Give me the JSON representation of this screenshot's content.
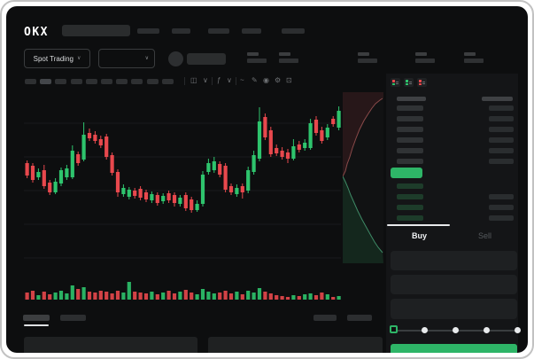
{
  "header": {
    "logo": "OKX",
    "nav_placeholder_count": 5,
    "search": {
      "placeholder": ""
    }
  },
  "subheader": {
    "market_type": {
      "label": "Spot Trading",
      "chevron": "∨"
    },
    "pair_select_chevron": "∨",
    "stat_placeholder_count": 5
  },
  "chart_toolbar": {
    "timeframe_pill_count": 10,
    "icons": [
      {
        "name": "candle-style-icon",
        "glyph": "◫"
      },
      {
        "name": "chevron-down-icon",
        "glyph": "∨"
      },
      {
        "name": "indicator-icon",
        "glyph": "ƒ"
      },
      {
        "name": "chevron-down-icon",
        "glyph": "∨"
      },
      {
        "name": "line-tool-icon",
        "glyph": "~"
      },
      {
        "name": "draw-tool-icon",
        "glyph": "✎"
      },
      {
        "name": "camera-icon",
        "glyph": "◉"
      },
      {
        "name": "settings-gear-icon",
        "glyph": "⚙"
      },
      {
        "name": "fullscreen-icon",
        "glyph": "⊡"
      }
    ]
  },
  "order_book": {
    "view_toggle_icons": [
      {
        "name": "book-both-icon"
      },
      {
        "name": "book-bids-icon"
      },
      {
        "name": "book-asks-icon"
      }
    ],
    "ask_row_count": 6,
    "bid_row_count": 4
  },
  "trade_panel": {
    "tabs": [
      {
        "label": "Buy",
        "active": true
      },
      {
        "label": "Sell",
        "active": false
      }
    ],
    "field_count": 3,
    "slider": {
      "steps": 5,
      "value_index": 0
    }
  },
  "bottom_bar": {
    "left_tab_count": 2,
    "right_pill_count": 2,
    "panel_count": 2
  },
  "colors": {
    "green": "#2ec46d",
    "red": "#e8484d",
    "accent_green": "#2eb567",
    "bid_bar": "#1d3c2a",
    "ask_bar": "#303335",
    "amount_bar": "#2a2d2f",
    "grid": "#191b1d",
    "depth_ask_line": "#8a4a4a",
    "depth_bid_line": "#3f8a66"
  },
  "chart_data": [
    {
      "type": "candlestick",
      "title": "",
      "xlabel": "",
      "ylabel": "",
      "ylim": [
        50,
        190
      ],
      "grid": true,
      "note": "prices in normalized units, no axis labels visible; candles as [open,high,low,close]",
      "candles": [
        [
          113,
          116,
          96,
          99
        ],
        [
          110,
          113,
          91,
          94
        ],
        [
          97,
          107,
          94,
          103
        ],
        [
          105,
          111,
          84,
          87
        ],
        [
          91,
          94,
          77,
          80
        ],
        [
          80,
          96,
          78,
          92
        ],
        [
          90,
          108,
          87,
          105
        ],
        [
          97,
          111,
          94,
          107
        ],
        [
          97,
          133,
          95,
          127
        ],
        [
          123,
          126,
          110,
          113
        ],
        [
          117,
          159,
          115,
          145
        ],
        [
          147,
          152,
          138,
          141
        ],
        [
          145,
          149,
          135,
          138
        ],
        [
          140,
          144,
          130,
          133
        ],
        [
          143,
          146,
          117,
          120
        ],
        [
          122,
          125,
          99,
          102
        ],
        [
          103,
          106,
          75,
          80
        ],
        [
          78,
          89,
          75,
          85
        ],
        [
          75,
          86,
          72,
          83
        ],
        [
          82,
          85,
          73,
          76
        ],
        [
          84,
          87,
          71,
          74
        ],
        [
          80,
          83,
          69,
          72
        ],
        [
          71,
          81,
          68,
          78
        ],
        [
          77,
          80,
          65,
          68
        ],
        [
          70,
          79,
          67,
          76
        ],
        [
          79,
          82,
          68,
          71
        ],
        [
          77,
          80,
          64,
          68
        ],
        [
          67,
          77,
          64,
          74
        ],
        [
          77,
          80,
          59,
          62
        ],
        [
          72,
          75,
          57,
          60
        ],
        [
          60,
          71,
          58,
          67
        ],
        [
          67,
          104,
          64,
          100
        ],
        [
          103,
          118,
          100,
          113
        ],
        [
          105,
          120,
          102,
          115
        ],
        [
          112,
          115,
          97,
          100
        ],
        [
          110,
          113,
          80,
          83
        ],
        [
          87,
          90,
          77,
          80
        ],
        [
          78,
          89,
          75,
          85
        ],
        [
          87,
          90,
          73,
          80
        ],
        [
          82,
          109,
          79,
          105
        ],
        [
          103,
          127,
          100,
          122
        ],
        [
          118,
          176,
          115,
          160
        ],
        [
          165,
          169,
          139,
          142
        ],
        [
          150,
          154,
          120,
          123
        ],
        [
          130,
          134,
          121,
          124
        ],
        [
          127,
          131,
          117,
          120
        ],
        [
          125,
          129,
          113,
          118
        ],
        [
          118,
          140,
          116,
          132
        ],
        [
          134,
          138,
          125,
          128
        ],
        [
          130,
          140,
          127,
          136
        ],
        [
          130,
          163,
          128,
          158
        ],
        [
          162,
          166,
          144,
          147
        ],
        [
          150,
          154,
          135,
          138
        ],
        [
          142,
          157,
          139,
          153
        ],
        [
          163,
          166,
          154,
          157
        ],
        [
          153,
          177,
          150,
          172
        ]
      ],
      "volume": [
        8,
        10,
        5,
        9,
        6,
        8,
        10,
        7,
        16,
        12,
        14,
        9,
        8,
        10,
        9,
        7,
        10,
        8,
        20,
        9,
        8,
        7,
        9,
        6,
        8,
        10,
        7,
        9,
        11,
        8,
        6,
        12,
        9,
        7,
        8,
        10,
        7,
        9,
        6,
        10,
        8,
        13,
        9,
        7,
        5,
        4,
        3,
        5,
        4,
        6,
        7,
        5,
        8,
        6,
        3,
        4
      ]
    },
    {
      "type": "area",
      "subtype": "depth",
      "orientation": "vertical",
      "note": "sideways depth chart: [cumulative_size, price]",
      "asks": [
        [
          0,
          98
        ],
        [
          3,
          104
        ],
        [
          5,
          112
        ],
        [
          8,
          120
        ],
        [
          11,
          130
        ],
        [
          15,
          141
        ],
        [
          19,
          151
        ],
        [
          24,
          161
        ],
        [
          29,
          169
        ],
        [
          33,
          175
        ],
        [
          37,
          180
        ],
        [
          42,
          184
        ],
        [
          45,
          186
        ]
      ],
      "bids": [
        [
          0,
          98
        ],
        [
          3,
          92
        ],
        [
          6,
          85
        ],
        [
          9,
          77
        ],
        [
          13,
          68
        ],
        [
          17,
          59
        ],
        [
          22,
          49
        ],
        [
          27,
          40
        ],
        [
          32,
          31
        ],
        [
          36,
          24
        ],
        [
          40,
          18
        ],
        [
          45,
          12
        ]
      ]
    }
  ]
}
